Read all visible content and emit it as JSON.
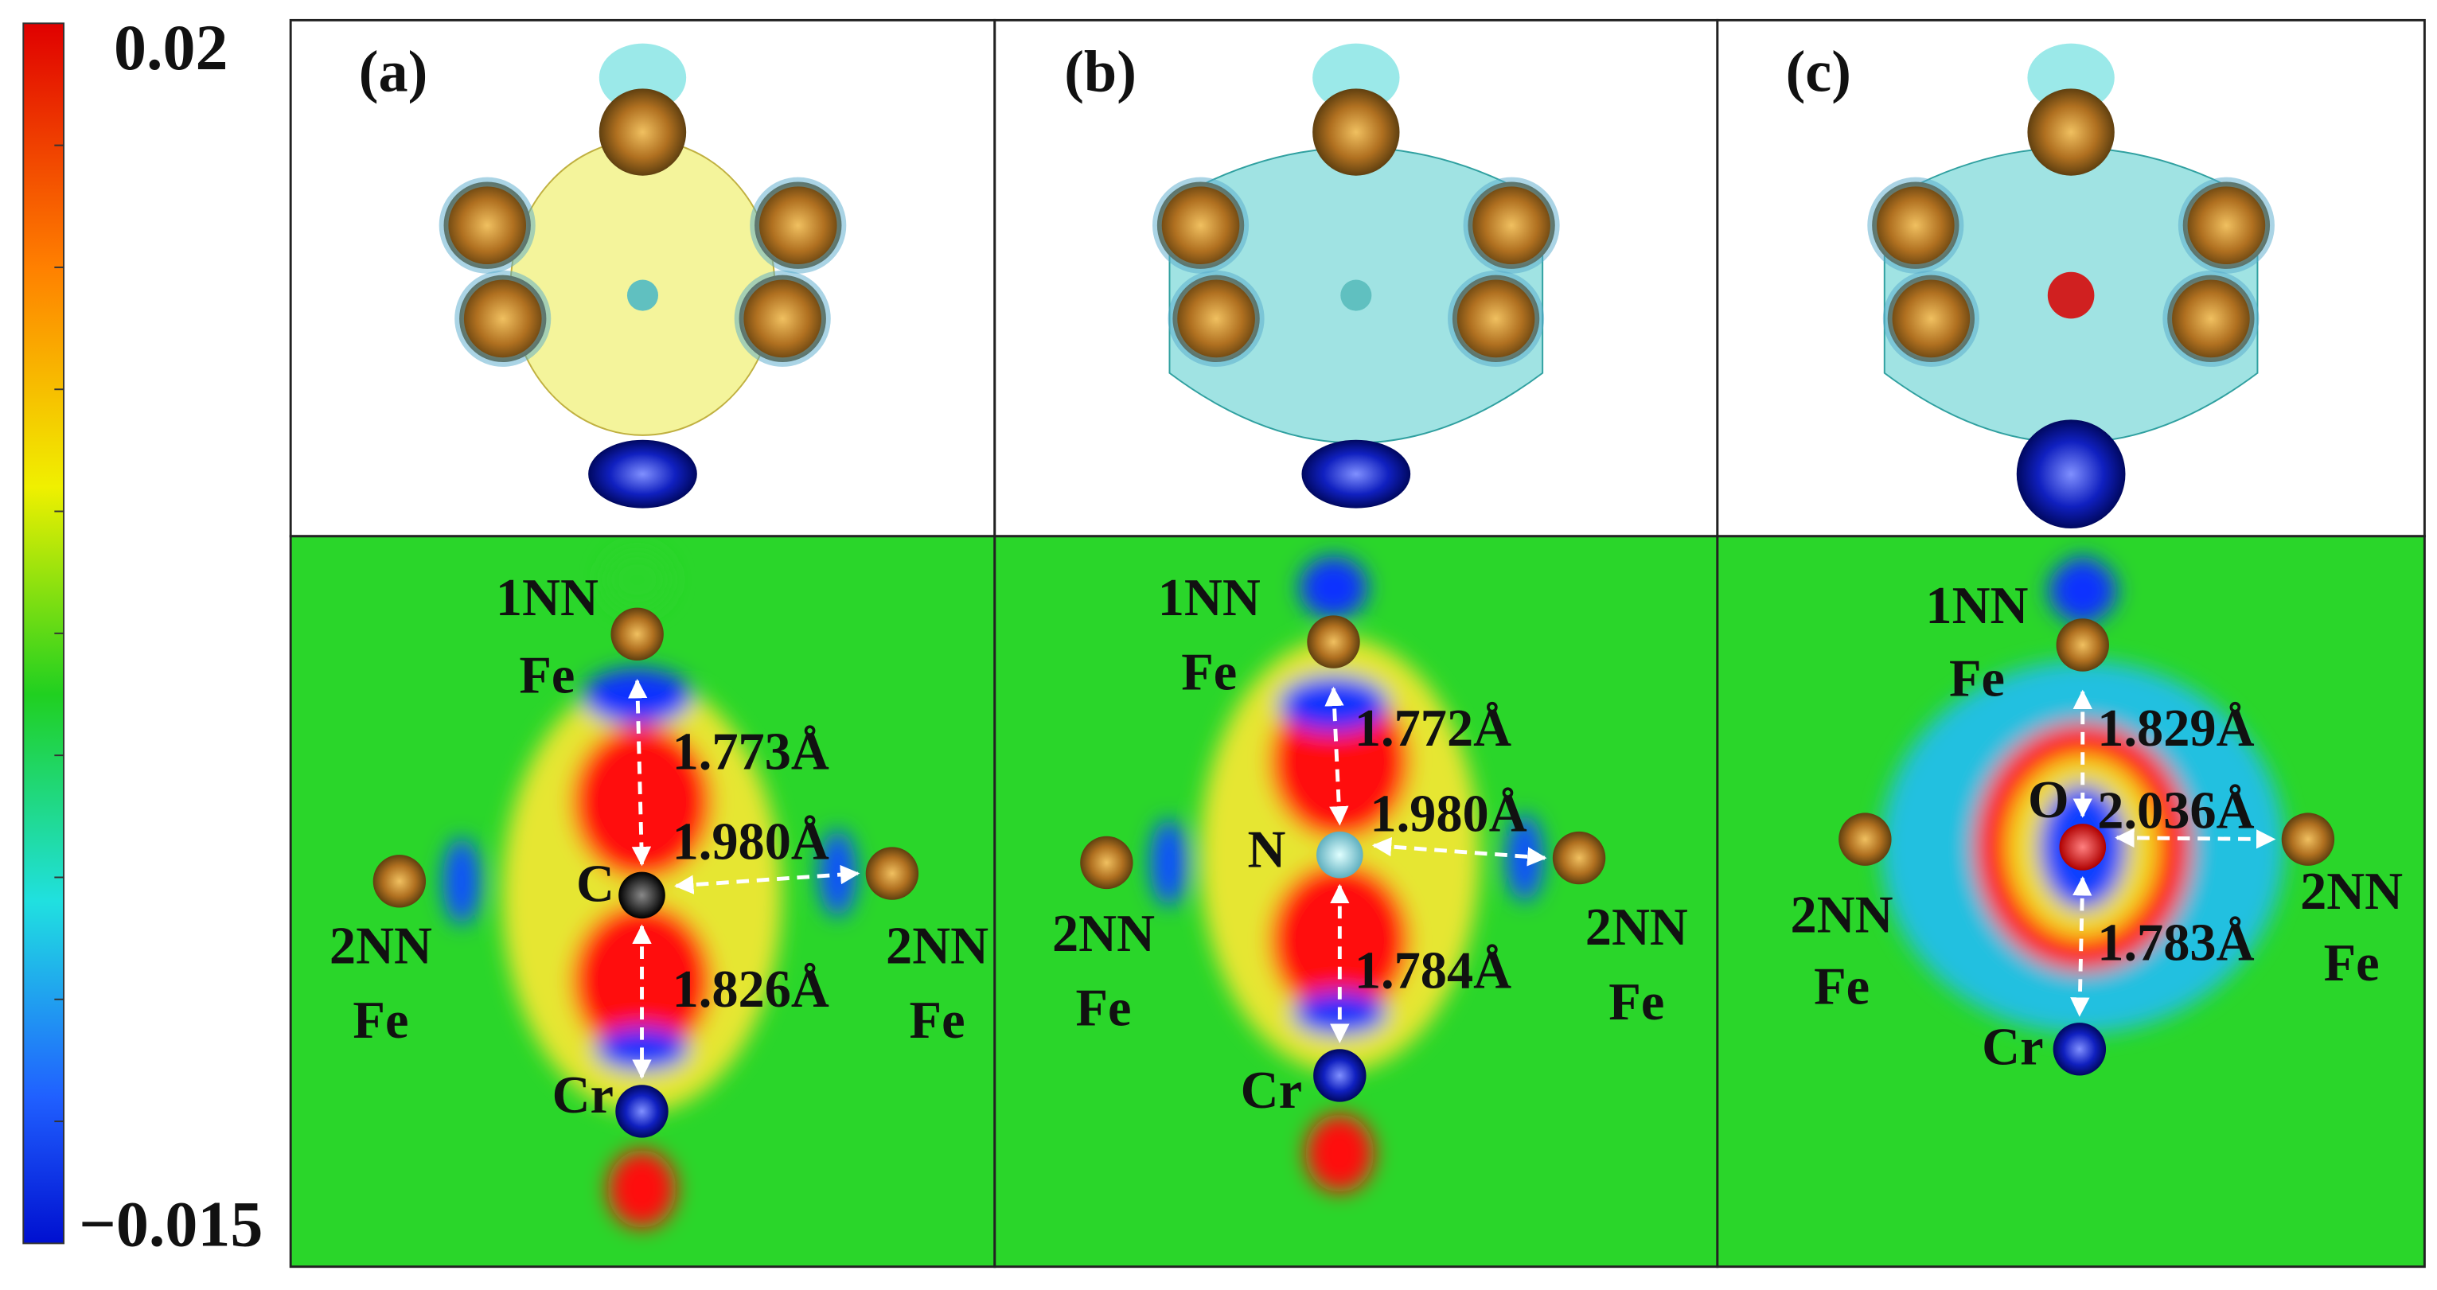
{
  "colorbar": {
    "max_label": "0.02",
    "min_label": "−0.015"
  },
  "panels": [
    {
      "label": "(a)",
      "center_atom": "C",
      "first_nn": [
        "1NN",
        "Fe"
      ],
      "second_nn_left": [
        "2NN",
        "Fe"
      ],
      "second_nn_right": [
        "2NN",
        "Fe"
      ],
      "bottom_atom": "Cr",
      "distances": {
        "first_nn": "1.773Å",
        "second_nn": "1.980Å",
        "bottom": "1.826Å"
      }
    },
    {
      "label": "(b)",
      "center_atom": "N",
      "first_nn": [
        "1NN",
        "Fe"
      ],
      "second_nn_left": [
        "2NN",
        "Fe"
      ],
      "second_nn_right": [
        "2NN",
        "Fe"
      ],
      "bottom_atom": "Cr",
      "distances": {
        "first_nn": "1.772Å",
        "second_nn": "1.980Å",
        "bottom": "1.784Å"
      }
    },
    {
      "label": "(c)",
      "center_atom": "O",
      "first_nn": [
        "1NN",
        "Fe"
      ],
      "second_nn_left": [
        "2NN",
        "Fe"
      ],
      "second_nn_right": [
        "2NN",
        "Fe"
      ],
      "bottom_atom": "Cr",
      "distances": {
        "first_nn": "1.829Å",
        "second_nn": "2.036Å",
        "bottom": "1.783Å"
      }
    }
  ]
}
